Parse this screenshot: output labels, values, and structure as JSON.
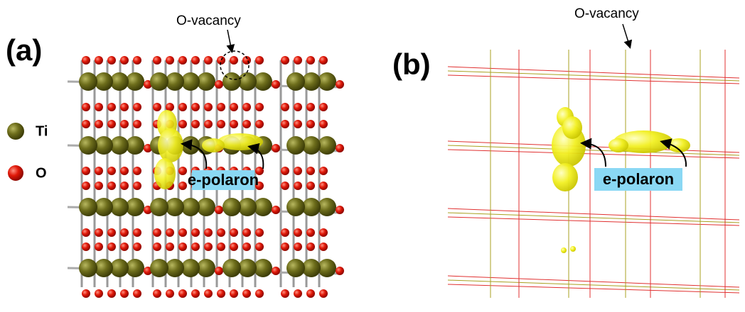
{
  "panel_a": {
    "label": "(a)",
    "vacancy_label": "O-vacancy",
    "legend": [
      "Ti",
      "O"
    ],
    "polaron_label": "e-polaron"
  },
  "panel_b": {
    "label": "(b)",
    "vacancy_label": "O-vacancy",
    "polaron_label": "e-polaron"
  }
}
